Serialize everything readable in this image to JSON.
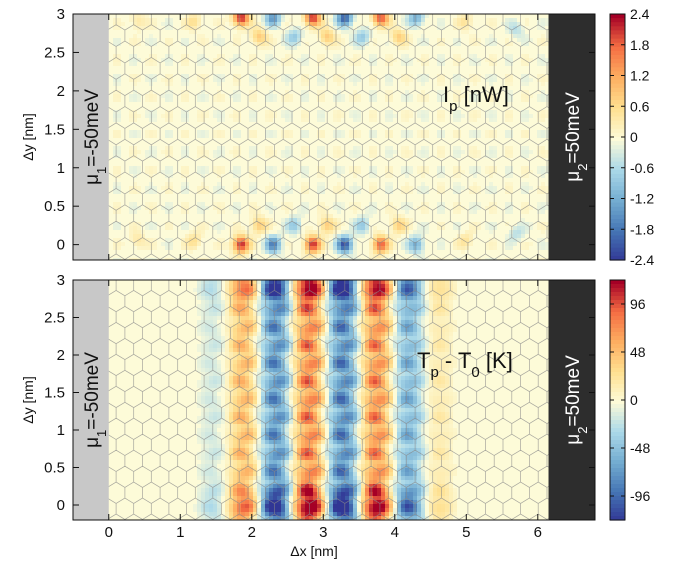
{
  "chart_data": [
    {
      "type": "heatmap",
      "name": "top-panel",
      "quantity_main": "I",
      "quantity_sub": "p",
      "quantity_unit": " [nW]",
      "ylabel": "Δy [nm]",
      "xlabel": "",
      "xlim": [
        -0.5,
        6.8
      ],
      "ylim": [
        -0.2,
        3.0
      ],
      "yticks": [
        0,
        0.5,
        1,
        1.5,
        2,
        2.5,
        3
      ],
      "xticks": [
        0,
        1,
        2,
        3,
        4,
        5,
        6
      ],
      "show_xtick_labels": false,
      "left_lead": {
        "mu": "μ",
        "sub": "1",
        "rest": "=-50meV",
        "color": "#c8c8c8",
        "x_range": [
          -0.5,
          0.0
        ]
      },
      "right_lead": {
        "mu": "μ",
        "sub": "2",
        "rest": "=50meV",
        "color": "#2d2d2d",
        "x_range": [
          6.15,
          6.8
        ]
      },
      "colorbar": {
        "min": -2.4,
        "max": 2.4,
        "ticks": [
          "2.4",
          "1.8",
          "1.2",
          "0.6",
          "0",
          "-0.6",
          "-1.2",
          "-1.8",
          "-2.4"
        ],
        "tick_values": [
          2.4,
          1.8,
          1.2,
          0.6,
          0,
          -0.6,
          -1.2,
          -1.8,
          -2.4
        ]
      },
      "colormap": [
        "#313695",
        "#4575b4",
        "#74add1",
        "#abd9e9",
        "#fdfbd8",
        "#fee090",
        "#fdae61",
        "#f46d43",
        "#a50026"
      ],
      "hot_spots": [
        {
          "x": 1.85,
          "y": 2.95,
          "v": 2.3
        },
        {
          "x": 2.3,
          "y": 2.95,
          "v": -1.4
        },
        {
          "x": 2.85,
          "y": 2.95,
          "v": 2.2
        },
        {
          "x": 3.3,
          "y": 2.95,
          "v": -2.0
        },
        {
          "x": 3.8,
          "y": 2.95,
          "v": 2.0
        },
        {
          "x": 4.3,
          "y": 2.95,
          "v": -1.2
        },
        {
          "x": 1.85,
          "y": 0.0,
          "v": 2.3
        },
        {
          "x": 2.3,
          "y": 0.0,
          "v": -1.6
        },
        {
          "x": 2.85,
          "y": 0.0,
          "v": 2.2
        },
        {
          "x": 3.3,
          "y": 0.0,
          "v": -2.1
        },
        {
          "x": 3.8,
          "y": 0.0,
          "v": 1.9
        },
        {
          "x": 4.3,
          "y": 0.0,
          "v": -1.2
        },
        {
          "x": 2.1,
          "y": 2.7,
          "v": 0.9
        },
        {
          "x": 2.6,
          "y": 2.7,
          "v": -0.8
        },
        {
          "x": 3.05,
          "y": 2.7,
          "v": 0.9
        },
        {
          "x": 3.55,
          "y": 2.7,
          "v": -0.8
        },
        {
          "x": 4.05,
          "y": 2.7,
          "v": 0.8
        },
        {
          "x": 2.1,
          "y": 0.25,
          "v": 0.9
        },
        {
          "x": 2.6,
          "y": 0.25,
          "v": -0.8
        },
        {
          "x": 3.05,
          "y": 0.25,
          "v": 0.9
        },
        {
          "x": 3.55,
          "y": 0.25,
          "v": -0.8
        },
        {
          "x": 4.05,
          "y": 0.25,
          "v": 0.8
        },
        {
          "x": 1.2,
          "y": 2.9,
          "v": 0.6
        },
        {
          "x": 0.4,
          "y": 2.9,
          "v": 0.5
        },
        {
          "x": 5.0,
          "y": 2.9,
          "v": 0.5
        },
        {
          "x": 1.2,
          "y": 0.05,
          "v": 0.6
        },
        {
          "x": 0.4,
          "y": 0.05,
          "v": 0.5
        },
        {
          "x": 5.0,
          "y": 0.05,
          "v": 0.5
        },
        {
          "x": 5.7,
          "y": 2.8,
          "v": -0.5
        },
        {
          "x": 5.7,
          "y": 0.15,
          "v": -0.5
        }
      ]
    },
    {
      "type": "heatmap",
      "name": "bottom-panel",
      "quantity_main": "T",
      "quantity_sub": "p",
      "quantity_mid": " - T",
      "quantity_sub2": "0",
      "quantity_unit": " [K]",
      "ylabel": "Δy [nm]",
      "xlabel": "Δx [nm]",
      "xlim": [
        -0.5,
        6.8
      ],
      "ylim": [
        -0.2,
        3.0
      ],
      "yticks": [
        0,
        0.5,
        1,
        1.5,
        2,
        2.5,
        3
      ],
      "xticks": [
        0,
        1,
        2,
        3,
        4,
        5,
        6
      ],
      "show_xtick_labels": true,
      "left_lead": {
        "mu": "μ",
        "sub": "1",
        "rest": "=-50meV",
        "color": "#c8c8c8",
        "x_range": [
          -0.5,
          0.0
        ]
      },
      "right_lead": {
        "mu": "μ",
        "sub": "2",
        "rest": "=50meV",
        "color": "#2d2d2d",
        "x_range": [
          6.15,
          6.8
        ]
      },
      "colorbar": {
        "min": -120,
        "max": 120,
        "ticks": [
          "96",
          "48",
          "0",
          "-48",
          "-96"
        ],
        "tick_values": [
          96,
          48,
          0,
          -48,
          -96
        ]
      },
      "colormap": [
        "#313695",
        "#4575b4",
        "#74add1",
        "#abd9e9",
        "#fdfbd8",
        "#fee090",
        "#fdae61",
        "#f46d43",
        "#a50026"
      ],
      "stripe_model": {
        "x_start": 0.5,
        "x_end": 5.6,
        "x_period": 0.475,
        "x_phase": 1.85,
        "y_period": 0.48,
        "y_phase": 0.2,
        "amplitude": 110
      }
    }
  ]
}
